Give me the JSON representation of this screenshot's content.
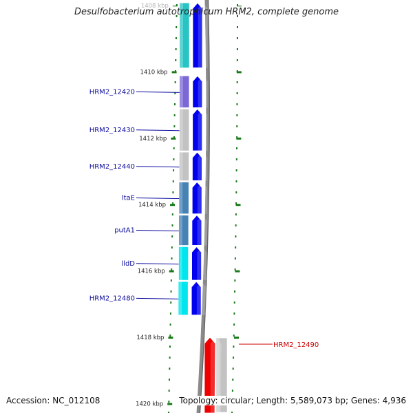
{
  "header": {
    "title": "Desulfobacterium autotrophicum HRM2, complete genome"
  },
  "footer": {
    "accession": "Accession: NC_012108",
    "topology": "Topology: circular; Length: 5,589,073 bp; Genes: 4,936"
  },
  "ruler": {
    "unit": "kbp",
    "ticks": [
      {
        "label": "1408 kbp",
        "kbp": 1408,
        "faded": true
      },
      {
        "label": "1410 kbp",
        "kbp": 1410
      },
      {
        "label": "1412 kbp",
        "kbp": 1412
      },
      {
        "label": "1414 kbp",
        "kbp": 1414
      },
      {
        "label": "1416 kbp",
        "kbp": 1416
      },
      {
        "label": "1418 kbp",
        "kbp": 1418
      },
      {
        "label": "1420 kbp",
        "kbp": 1420
      }
    ]
  },
  "colors": {
    "label_blue": "#0a0a9e",
    "label_red": "#cc0000",
    "tick_green": "#1a7a1a",
    "backbone": "#808080",
    "cds_blue": "#0000ee",
    "cds_red": "#ee0000"
  },
  "genes": [
    {
      "label": "",
      "start_kbp": 1407.9,
      "end_kbp": 1409.9,
      "cog_color": "#28c4c4",
      "strand": "+"
    },
    {
      "label": "HRM2_12420",
      "start_kbp": 1410.1,
      "end_kbp": 1411.1,
      "cog_color": "#7b68d6",
      "strand": "+"
    },
    {
      "label": "HRM2_12430",
      "start_kbp": 1411.1,
      "end_kbp": 1412.4,
      "cog_color": "#c2c2c2",
      "strand": "+"
    },
    {
      "label": "HRM2_12440",
      "start_kbp": 1412.4,
      "end_kbp": 1413.3,
      "cog_color": "#c2c2c2",
      "strand": "+"
    },
    {
      "label": "ltaE",
      "start_kbp": 1413.3,
      "end_kbp": 1414.3,
      "cog_color": "#4682b4",
      "strand": "+"
    },
    {
      "label": "putA1",
      "start_kbp": 1414.3,
      "end_kbp": 1415.25,
      "cog_color": "#4682b4",
      "strand": "+"
    },
    {
      "label": "lldD",
      "start_kbp": 1415.25,
      "end_kbp": 1416.3,
      "cog_color": "#00e5ee",
      "strand": "+"
    },
    {
      "label": "HRM2_12480",
      "start_kbp": 1416.3,
      "end_kbp": 1417.35,
      "cog_color": "#00e5ee",
      "strand": "+"
    },
    {
      "label": "HRM2_12490",
      "start_kbp": 1418.0,
      "end_kbp": 1420.3,
      "cog_color": "#c2c2c2",
      "strand": "-"
    }
  ]
}
